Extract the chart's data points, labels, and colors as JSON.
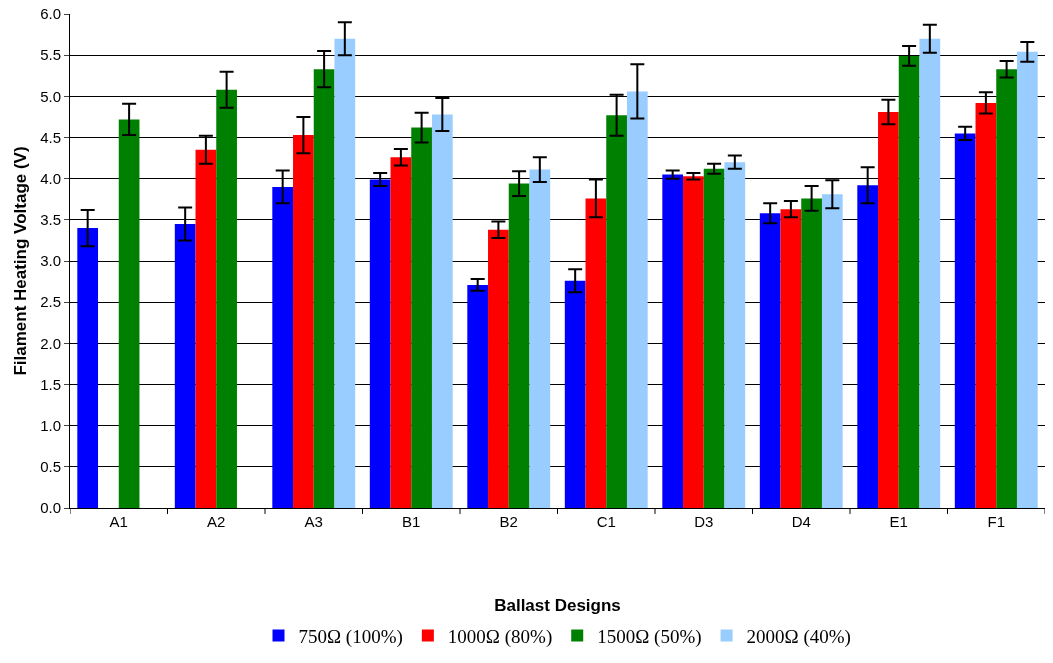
{
  "chart_data": {
    "type": "bar",
    "xlabel": "Ballast Designs",
    "ylabel": "Filament Heating Voltage (V)",
    "categories": [
      "A1",
      "A2",
      "A3",
      "B1",
      "B2",
      "C1",
      "D3",
      "D4",
      "E1",
      "F1"
    ],
    "series": [
      {
        "name": "750Ω (100%)",
        "color": "#0000ff",
        "values": [
          3.4,
          3.45,
          3.9,
          3.99,
          2.71,
          2.76,
          4.05,
          3.58,
          3.92,
          4.55
        ],
        "errors": [
          0.22,
          0.2,
          0.2,
          0.08,
          0.07,
          0.14,
          0.05,
          0.12,
          0.22,
          0.08
        ]
      },
      {
        "name": "1000Ω (80%)",
        "color": "#ff0000",
        "values": [
          null,
          4.35,
          4.53,
          4.26,
          3.38,
          3.76,
          4.03,
          3.63,
          4.81,
          4.92
        ],
        "errors": [
          null,
          0.17,
          0.22,
          0.1,
          0.1,
          0.23,
          0.04,
          0.1,
          0.15,
          0.13
        ]
      },
      {
        "name": "1500Ω (50%)",
        "color": "#008000",
        "values": [
          4.72,
          5.08,
          5.33,
          4.62,
          3.94,
          4.77,
          4.12,
          3.76,
          5.49,
          5.33
        ],
        "errors": [
          0.19,
          0.22,
          0.22,
          0.18,
          0.15,
          0.25,
          0.06,
          0.15,
          0.12,
          0.1
        ]
      },
      {
        "name": "2000Ω (40%)",
        "color": "#99ccff",
        "values": [
          null,
          null,
          5.7,
          4.78,
          4.11,
          5.06,
          4.2,
          3.81,
          5.7,
          5.54
        ],
        "errors": [
          null,
          null,
          0.2,
          0.2,
          0.15,
          0.33,
          0.08,
          0.17,
          0.17,
          0.12
        ]
      }
    ],
    "ylim": [
      0,
      6
    ],
    "yticks": [
      {
        "value": 0,
        "label": "0.0"
      },
      0.5,
      {
        "value": 1,
        "label": "1.0"
      },
      1.5,
      {
        "value": 2,
        "label": "2.0"
      },
      2.5,
      {
        "value": 3,
        "label": "3.0"
      },
      3.5,
      {
        "value": 4,
        "label": "4.0"
      },
      4.5,
      {
        "value": 5,
        "label": "5.0"
      },
      5.5,
      {
        "value": 6,
        "label": "6.0"
      }
    ],
    "grid": "y",
    "legend": "bottom"
  }
}
